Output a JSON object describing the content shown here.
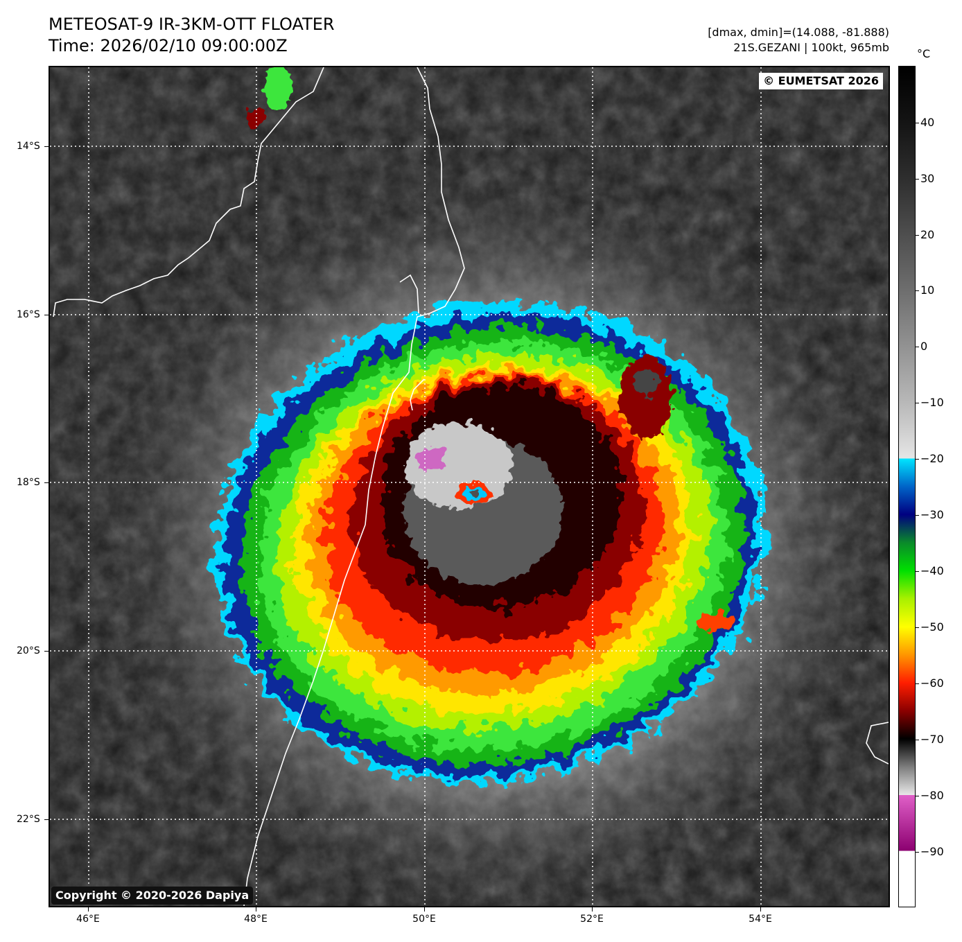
{
  "header": {
    "title": "METEOSAT-9 IR-3KM-OTT FLOATER",
    "time": "Time: 2026/02/10 09:00:00Z",
    "range_info": "[dmax, dmin]=(14.088, -81.888)",
    "storm_info": "21S.GEZANI | 100kt, 965mb"
  },
  "map": {
    "credit_top": "© EUMETSAT 2026",
    "credit_bottom": "Copyright © 2020-2026 Dapiya",
    "lat_labels": [
      "14°S",
      "16°S",
      "18°S",
      "20°S",
      "22°S"
    ],
    "lon_labels": [
      "46°E",
      "48°E",
      "50°E",
      "52°E",
      "54°E"
    ]
  },
  "colorbar": {
    "unit": "°C",
    "tick_labels": [
      "40",
      "30",
      "20",
      "10",
      "0",
      "−10",
      "−20",
      "−30",
      "−40",
      "−50",
      "−60",
      "−70",
      "−80",
      "−90"
    ],
    "stops": [
      {
        "t": 50,
        "color": "#000000"
      },
      {
        "t": 40,
        "color": "#141414"
      },
      {
        "t": 30,
        "color": "#2e2e2e"
      },
      {
        "t": 20,
        "color": "#4e4e4e"
      },
      {
        "t": 10,
        "color": "#6e6e6e"
      },
      {
        "t": 0,
        "color": "#929292"
      },
      {
        "t": -10,
        "color": "#b8b8b8"
      },
      {
        "t": -20,
        "color": "#e6e6e6"
      },
      {
        "t": -20,
        "color": "#00e5ff"
      },
      {
        "t": -25,
        "color": "#0064c8"
      },
      {
        "t": -30,
        "color": "#000080"
      },
      {
        "t": -35,
        "color": "#0a8a2a"
      },
      {
        "t": -40,
        "color": "#00e000"
      },
      {
        "t": -45,
        "color": "#a8f000"
      },
      {
        "t": -50,
        "color": "#ffff00"
      },
      {
        "t": -55,
        "color": "#ff9600"
      },
      {
        "t": -60,
        "color": "#ff1e00"
      },
      {
        "t": -65,
        "color": "#8b0000"
      },
      {
        "t": -70,
        "color": "#000000"
      },
      {
        "t": -75,
        "color": "#7d7d7d"
      },
      {
        "t": -80,
        "color": "#e8e8e8"
      },
      {
        "t": -80,
        "color": "#e060c8"
      },
      {
        "t": -90,
        "color": "#8c0070"
      },
      {
        "t": -90,
        "color": "#ffffff"
      },
      {
        "t": -100,
        "color": "#ffffff"
      }
    ]
  }
}
